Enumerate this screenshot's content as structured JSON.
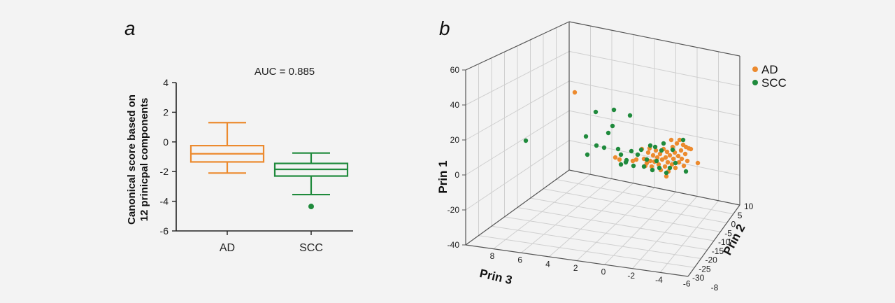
{
  "panels": {
    "a": "a",
    "b": "b"
  },
  "colors": {
    "AD": "#ec8a2e",
    "SCC": "#1f8a3c",
    "bg": "#f3f3f3"
  },
  "chart_data": [
    {
      "type": "box",
      "panel": "a",
      "annotation": "AUC = 0.885",
      "ylabel_line1": "Canonical score based on",
      "ylabel_line2": "12 prinicpal components",
      "ylim": [
        -6,
        4
      ],
      "yticks": [
        4,
        2,
        0,
        -2,
        -4,
        -6
      ],
      "categories": [
        "AD",
        "SCC"
      ],
      "boxes": [
        {
          "name": "AD",
          "whisker_low": -2.1,
          "q1": -1.35,
          "median": -0.8,
          "q3": -0.25,
          "whisker_high": 1.3,
          "outliers": []
        },
        {
          "name": "SCC",
          "whisker_low": -3.55,
          "q1": -2.3,
          "median": -1.85,
          "q3": -1.45,
          "whisker_high": -0.75,
          "outliers": [
            -4.35
          ]
        }
      ]
    },
    {
      "type": "scatter3d",
      "panel": "b",
      "axes": {
        "prin1": {
          "label": "Prin 1",
          "range": [
            -40,
            60
          ],
          "ticks": [
            60,
            40,
            20,
            0,
            -20,
            -40
          ]
        },
        "prin2": {
          "label": "Prin 2",
          "range": [
            -30,
            10
          ],
          "ticks": [
            10,
            5,
            0,
            -5,
            -10,
            -15,
            -20,
            -25,
            -30
          ]
        },
        "prin3": {
          "label": "Prin 3",
          "range": [
            -8,
            8
          ],
          "ticks": [
            8,
            6,
            4,
            2,
            0,
            -2,
            -4,
            -6,
            -8
          ]
        }
      },
      "legend": [
        "AD",
        "SCC"
      ],
      "series": [
        {
          "name": "AD",
          "points_view": [
            [
              822,
              132
            ],
            [
              880,
              225
            ],
            [
              886,
              228
            ],
            [
              905,
              230
            ],
            [
              910,
              228
            ],
            [
              918,
              213
            ],
            [
              921,
              227
            ],
            [
              923,
              237
            ],
            [
              925,
              233
            ],
            [
              927,
              218
            ],
            [
              929,
              212
            ],
            [
              930,
              230
            ],
            [
              932,
              238
            ],
            [
              934,
              222
            ],
            [
              936,
              231
            ],
            [
              938,
              215
            ],
            [
              940,
              225
            ],
            [
              942,
              235
            ],
            [
              944,
              220
            ],
            [
              945,
              243
            ],
            [
              947,
              228
            ],
            [
              949,
              213
            ],
            [
              951,
              238
            ],
            [
              952,
              225
            ],
            [
              953,
              252
            ],
            [
              954,
              217
            ],
            [
              955,
              232
            ],
            [
              956,
              245
            ],
            [
              958,
              222
            ],
            [
              960,
              200
            ],
            [
              961,
              235
            ],
            [
              962,
              210
            ],
            [
              963,
              227
            ],
            [
              965,
              218
            ],
            [
              966,
              240
            ],
            [
              968,
              205
            ],
            [
              970,
              223
            ],
            [
              971,
              232
            ],
            [
              972,
              200
            ],
            [
              974,
              215
            ],
            [
              975,
              227
            ],
            [
              977,
              207
            ],
            [
              978,
              237
            ],
            [
              980,
              220
            ],
            [
              981,
              210
            ],
            [
              983,
              230
            ],
            [
              985,
              212
            ],
            [
              988,
              213
            ],
            [
              998,
              233
            ]
          ]
        },
        {
          "name": "SCC",
          "points_view": [
            [
              752,
              201
            ],
            [
              852,
              160
            ],
            [
              878,
              157
            ],
            [
              901,
              165
            ],
            [
              876,
              180
            ],
            [
              870,
              190
            ],
            [
              838,
              195
            ],
            [
              853,
              208
            ],
            [
              864,
              211
            ],
            [
              840,
              221
            ],
            [
              884,
              213
            ],
            [
              888,
              221
            ],
            [
              896,
              229
            ],
            [
              903,
              216
            ],
            [
              906,
              237
            ],
            [
              912,
              221
            ],
            [
              917,
              214
            ],
            [
              921,
              238
            ],
            [
              925,
              228
            ],
            [
              930,
              208
            ],
            [
              933,
              243
            ],
            [
              937,
              210
            ],
            [
              939,
              230
            ],
            [
              943,
              240
            ],
            [
              946,
              215
            ],
            [
              949,
              205
            ],
            [
              953,
              247
            ],
            [
              958,
              240
            ],
            [
              962,
              214
            ],
            [
              966,
              233
            ],
            [
              977,
              200
            ],
            [
              981,
              245
            ],
            [
              888,
              235
            ],
            [
              895,
              232
            ]
          ]
        }
      ]
    }
  ]
}
